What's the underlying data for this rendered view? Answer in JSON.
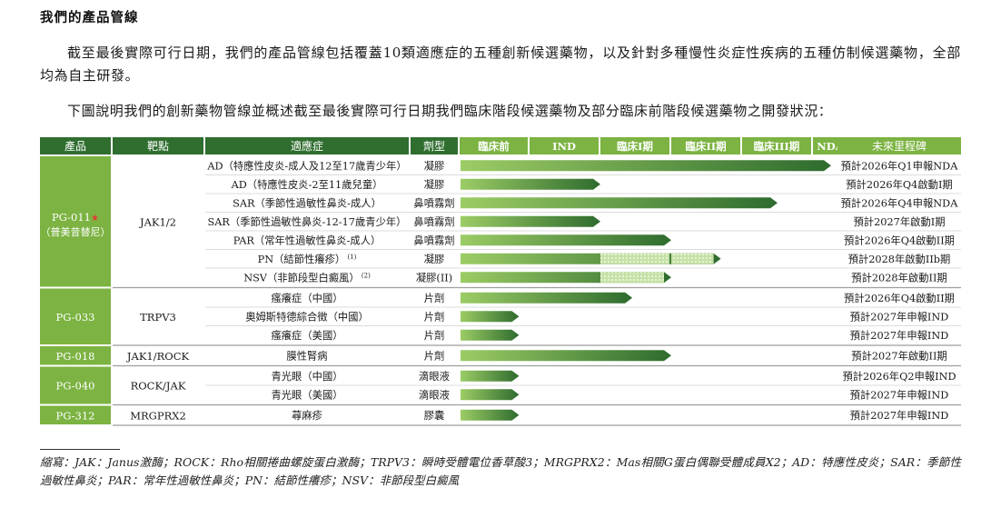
{
  "heading": "我們的產品管線",
  "paragraph1": "截至最後實際可行日期，我們的產品管線包括覆蓋10類適應症的五種創新候選藥物，以及針對多種慢性炎症性疾病的五種仿制候選藥物，全部均為自主研發。",
  "paragraph2": "下圖說明我們的創新藥物管線並概述截至最後實際可行日期我們臨床階段候選藥物及部分臨床前階段候選藥物之開發狀況：",
  "pipeline": {
    "headers": {
      "product": "產品",
      "target": "靶點",
      "indication": "適應症",
      "dosage": "劑型",
      "milestone": "未來里程碑"
    },
    "stages": [
      "臨床前",
      "IND",
      "臨床I期",
      "臨床II期",
      "臨床III期",
      "NDA"
    ],
    "colors": {
      "header_dark": "#2f6e2f",
      "header_light": "#7cb342",
      "product_cell": "#7cb342",
      "bar_start": "#9ccc65",
      "bar_end": "#2e6b2e",
      "hatch": "#c5e1a5",
      "highlight_star": "#e53935"
    },
    "groups": [
      {
        "product": "PG-011",
        "product_star": "★",
        "product_sub": "（普美昔替尼）",
        "target": "JAK1/2",
        "rows": [
          {
            "indication": "AD（特應性皮炎-成人及12至17歲青少年）",
            "sup": "",
            "dosage": "凝膠",
            "progress": 5.5,
            "hatched": [],
            "milestone": "預計2026年Q1申報NDA"
          },
          {
            "indication": "AD（特應性皮炎-2至11歲兒童）",
            "sup": "",
            "dosage": "凝膠",
            "progress": 2.0,
            "hatched": [],
            "milestone": "預計2026年Q4啟動I期"
          },
          {
            "indication": "SAR（季節性過敏性鼻炎-成人）",
            "sup": "",
            "dosage": "鼻噴霧劑",
            "progress": 4.5,
            "hatched": [],
            "milestone": "預計2026年Q4申報NDA"
          },
          {
            "indication": "SAR（季節性過敏性鼻炎-12-17歲青少年）",
            "sup": "",
            "dosage": "鼻噴霧劑",
            "progress": 2.0,
            "hatched": [],
            "milestone": "預計2027年啟動I期"
          },
          {
            "indication": "PAR（常年性過敏性鼻炎-成人）",
            "sup": "",
            "dosage": "鼻噴霧劑",
            "progress": 3.0,
            "hatched": [],
            "milestone": "預計2026年Q4啟動II期"
          },
          {
            "indication": "PN（結節性癢疹）",
            "sup": "(1)",
            "dosage": "凝膠",
            "progress": 3.7,
            "hatched": [
              2,
              3
            ],
            "milestone": "預計2028年啟動IIb期"
          },
          {
            "indication": "NSV（非節段型白癜風）",
            "sup": "(2)",
            "dosage": "凝膠(II)",
            "progress": 3.0,
            "hatched": [
              2,
              3
            ],
            "milestone": "預計2028年啟動II期"
          }
        ]
      },
      {
        "product": "PG-033",
        "product_star": "",
        "product_sub": "",
        "target": "TRPV3",
        "rows": [
          {
            "indication": "瘙癢症（中國）",
            "sup": "",
            "dosage": "片劑",
            "progress": 2.45,
            "hatched": [],
            "milestone": "預計2026年Q4啟動II期"
          },
          {
            "indication": "奧姆斯特德綜合徵（中國）",
            "sup": "",
            "dosage": "片劑",
            "progress": 0.85,
            "hatched": [],
            "milestone": "預計2027年申報IND"
          },
          {
            "indication": "瘙癢症（美國）",
            "sup": "",
            "dosage": "片劑",
            "progress": 0.85,
            "hatched": [],
            "milestone": "預計2027年申報IND"
          }
        ]
      },
      {
        "product": "PG-018",
        "product_star": "",
        "product_sub": "",
        "target": "JAK1/ROCK",
        "rows": [
          {
            "indication": "膜性腎病",
            "sup": "",
            "dosage": "片劑",
            "progress": 3.0,
            "hatched": [],
            "milestone": "預計2027年啟動II期"
          }
        ]
      },
      {
        "product": "PG-040",
        "product_star": "",
        "product_sub": "",
        "target": "ROCK/JAK",
        "rows": [
          {
            "indication": "青光眼（中國）",
            "sup": "",
            "dosage": "滴眼液",
            "progress": 0.85,
            "hatched": [],
            "milestone": "預計2026年Q2申報IND"
          },
          {
            "indication": "青光眼（美國）",
            "sup": "",
            "dosage": "滴眼液",
            "progress": 0.85,
            "hatched": [],
            "milestone": "預計2027年申報IND"
          }
        ]
      },
      {
        "product": "PG-312",
        "product_star": "",
        "product_sub": "",
        "target": "MRGPRX2",
        "rows": [
          {
            "indication": "蕁麻疹",
            "sup": "",
            "dosage": "膠囊",
            "progress": 0.85,
            "hatched": [],
            "milestone": "預計2027年申報IND"
          }
        ]
      }
    ]
  },
  "footnote": "縮寫：JAK：Janus激酶；ROCK：Rho相關捲曲螺旋蛋白激酶；TRPV3：瞬時受體電位香草酸3；MRGPRX2：Mas相關G蛋白偶聯受體成員X2；AD：特應性皮炎；SAR：季節性過敏性鼻炎；PAR：常年性過敏性鼻炎；PN：結節性癢疹；NSV：非節段型白癜風"
}
